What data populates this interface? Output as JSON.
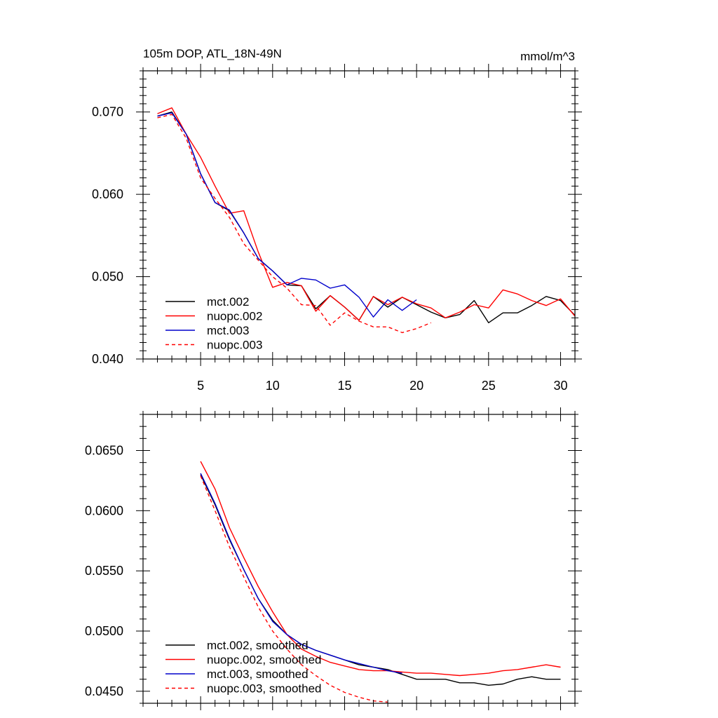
{
  "chart_data": [
    {
      "type": "line",
      "title": "105m DOP, ATL_18N-49N",
      "units": "mmol/m^3",
      "xlim": [
        1,
        31
      ],
      "ylim": [
        0.04,
        0.075
      ],
      "x_ticks": [
        5,
        10,
        15,
        20,
        25,
        30
      ],
      "x_tick_labels": [
        "5",
        "10",
        "15",
        "20",
        "25",
        "30"
      ],
      "y_ticks": [
        0.04,
        0.05,
        0.06,
        0.07
      ],
      "y_tick_labels": [
        "0.040",
        "0.050",
        "0.060",
        "0.070"
      ],
      "legend_position": "bottom-left",
      "series": [
        {
          "name": "mct.002",
          "color": "#000000",
          "dashed": false,
          "x": [
            2,
            3,
            4,
            5,
            6,
            7,
            8,
            9,
            10,
            11,
            12,
            13,
            14,
            15,
            16,
            17,
            18,
            19,
            20,
            21,
            22,
            23,
            24,
            25,
            26,
            27,
            28,
            29,
            30,
            31
          ],
          "y": [
            0.0695,
            0.07,
            0.0673,
            0.0625,
            0.059,
            0.058,
            0.0553,
            0.0522,
            0.0507,
            0.049,
            0.0489,
            0.0461,
            0.0477,
            0.0463,
            0.0447,
            0.0476,
            0.0463,
            0.0475,
            0.0466,
            0.0457,
            0.045,
            0.0454,
            0.0471,
            0.0444,
            0.0456,
            0.0456,
            0.0465,
            0.0476,
            0.0471,
            0.0453
          ]
        },
        {
          "name": "nuopc.002",
          "color": "#ff0000",
          "dashed": false,
          "x": [
            2,
            3,
            4,
            5,
            6,
            7,
            8,
            9,
            10,
            11,
            12,
            13,
            14,
            15,
            16,
            17,
            18,
            19,
            20,
            21,
            22,
            23,
            24,
            25,
            26,
            27,
            28,
            29,
            30,
            31
          ],
          "y": [
            0.0698,
            0.0705,
            0.0673,
            0.0645,
            0.061,
            0.0577,
            0.058,
            0.053,
            0.0487,
            0.0493,
            0.0489,
            0.0458,
            0.0477,
            0.0463,
            0.0447,
            0.0476,
            0.0466,
            0.0475,
            0.0467,
            0.0462,
            0.045,
            0.0457,
            0.0466,
            0.0462,
            0.0484,
            0.0479,
            0.0471,
            0.0465,
            0.0473,
            0.0452
          ]
        },
        {
          "name": "mct.003",
          "color": "#0000cc",
          "dashed": false,
          "x": [
            2,
            3,
            4,
            5,
            6,
            7,
            8,
            9,
            10,
            11,
            12,
            13,
            14,
            15,
            16,
            17,
            18,
            19,
            20
          ],
          "y": [
            0.0695,
            0.0699,
            0.0673,
            0.0625,
            0.059,
            0.0581,
            0.0553,
            0.0522,
            0.0507,
            0.049,
            0.0498,
            0.0496,
            0.0486,
            0.049,
            0.0475,
            0.0451,
            0.0472,
            0.0459,
            0.0472
          ]
        },
        {
          "name": "nuopc.003",
          "color": "#ff0000",
          "dashed": true,
          "x": [
            2,
            3,
            4,
            5,
            6,
            7,
            8,
            9,
            10,
            11,
            12,
            13,
            14,
            15,
            16,
            17,
            18,
            19,
            20,
            21
          ],
          "y": [
            0.0693,
            0.0697,
            0.0668,
            0.062,
            0.0595,
            0.0572,
            0.054,
            0.052,
            0.05,
            0.0486,
            0.0466,
            0.0465,
            0.0441,
            0.0456,
            0.0446,
            0.0439,
            0.0439,
            0.0432,
            0.0437,
            0.0444
          ]
        }
      ]
    },
    {
      "type": "line",
      "title": "",
      "xlim": [
        1,
        31
      ],
      "ylim": [
        0.044,
        0.068
      ],
      "x_ticks": [
        5,
        10,
        15,
        20,
        25,
        30
      ],
      "x_tick_labels": [
        "",
        "",
        "",
        "",
        "",
        ""
      ],
      "y_ticks": [
        0.045,
        0.05,
        0.055,
        0.06,
        0.065
      ],
      "y_tick_labels": [
        "0.0450",
        "0.0500",
        "0.0550",
        "0.0600",
        "0.0650"
      ],
      "legend_position": "bottom-left",
      "series": [
        {
          "name": "mct.002, smoothed",
          "color": "#000000",
          "dashed": false,
          "x": [
            5,
            6,
            7,
            8,
            9,
            10,
            11,
            12,
            13,
            14,
            15,
            16,
            17,
            18,
            19,
            20,
            21,
            22,
            23,
            24,
            25,
            26,
            27,
            28,
            29,
            30
          ],
          "y": [
            0.063,
            0.0605,
            0.0576,
            0.0551,
            0.0527,
            0.0509,
            0.0497,
            0.0489,
            0.0484,
            0.048,
            0.0476,
            0.0472,
            0.047,
            0.0468,
            0.0464,
            0.046,
            0.046,
            0.046,
            0.0457,
            0.0457,
            0.0455,
            0.0456,
            0.046,
            0.0462,
            0.046,
            0.046
          ]
        },
        {
          "name": "nuopc.002, smoothed",
          "color": "#ff0000",
          "dashed": false,
          "x": [
            5,
            6,
            7,
            8,
            9,
            10,
            11,
            12,
            13,
            14,
            15,
            16,
            17,
            18,
            19,
            20,
            21,
            22,
            23,
            24,
            25,
            26,
            27,
            28,
            29,
            30
          ],
          "y": [
            0.0641,
            0.0618,
            0.0586,
            0.0561,
            0.0537,
            0.0516,
            0.0497,
            0.0485,
            0.0479,
            0.0474,
            0.0471,
            0.0468,
            0.0467,
            0.0467,
            0.0466,
            0.0465,
            0.0465,
            0.0464,
            0.0463,
            0.0464,
            0.0465,
            0.0467,
            0.0468,
            0.047,
            0.0472,
            0.047
          ]
        },
        {
          "name": "mct.003, smoothed",
          "color": "#0000cc",
          "dashed": false,
          "x": [
            5,
            6,
            7,
            8,
            9,
            10,
            11,
            12,
            13,
            14,
            15,
            16,
            17,
            18,
            19
          ],
          "y": [
            0.0631,
            0.0606,
            0.0577,
            0.0551,
            0.0527,
            0.0508,
            0.0497,
            0.0489,
            0.0484,
            0.048,
            0.0476,
            0.0473,
            0.047,
            0.0467,
            0.0465
          ]
        },
        {
          "name": "nuopc.003, smoothed",
          "color": "#ff0000",
          "dashed": true,
          "x": [
            5,
            6,
            7,
            8,
            9,
            10,
            11,
            12,
            13,
            14,
            15,
            16,
            17,
            18
          ],
          "y": [
            0.0629,
            0.06,
            0.057,
            0.0545,
            0.052,
            0.05,
            0.0485,
            0.0472,
            0.0463,
            0.0455,
            0.0449,
            0.0445,
            0.0442,
            0.0441
          ]
        }
      ]
    }
  ]
}
